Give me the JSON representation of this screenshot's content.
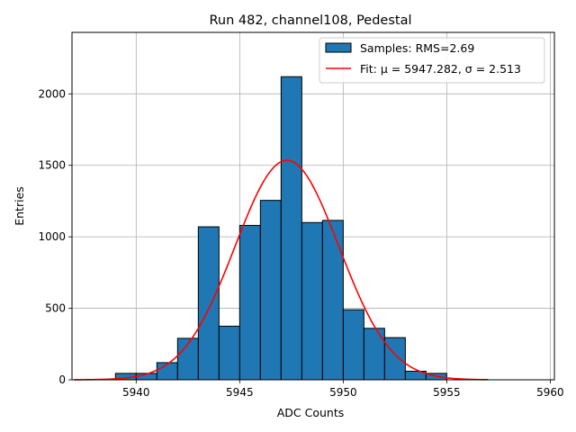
{
  "chart_data": {
    "type": "bar",
    "title": "Run 482, channel108, Pedestal",
    "xlabel": "ADC Counts",
    "ylabel": "Entries",
    "xlim": [
      5936.9,
      5960.2
    ],
    "ylim": [
      0,
      2430
    ],
    "xticks": [
      5940,
      5945,
      5950,
      5955,
      5960
    ],
    "yticks": [
      0,
      500,
      1000,
      1500,
      2000
    ],
    "grid": true,
    "legend_position": "top-right",
    "bin_width": 1,
    "bins": [
      {
        "x": 5939,
        "count": 45
      },
      {
        "x": 5940,
        "count": 45
      },
      {
        "x": 5941,
        "count": 120
      },
      {
        "x": 5942,
        "count": 290
      },
      {
        "x": 5943,
        "count": 1070
      },
      {
        "x": 5944,
        "count": 375
      },
      {
        "x": 5945,
        "count": 1080
      },
      {
        "x": 5946,
        "count": 1255
      },
      {
        "x": 5947,
        "count": 2120
      },
      {
        "x": 5948,
        "count": 1100
      },
      {
        "x": 5949,
        "count": 1115
      },
      {
        "x": 5950,
        "count": 490
      },
      {
        "x": 5951,
        "count": 360
      },
      {
        "x": 5952,
        "count": 295
      },
      {
        "x": 5953,
        "count": 60
      },
      {
        "x": 5954,
        "count": 45
      }
    ],
    "series": [
      {
        "name": "Samples: RMS=2.69",
        "kind": "histogram",
        "color": "#1f77b4",
        "edgecolor": "#000000"
      },
      {
        "name": "Fit: μ = 5947.282, σ = 2.513",
        "kind": "gaussian",
        "color": "#ff0000",
        "mu": 5947.282,
        "sigma": 2.513,
        "peak": 1535,
        "x_range": [
          5937,
          5957
        ]
      }
    ]
  }
}
